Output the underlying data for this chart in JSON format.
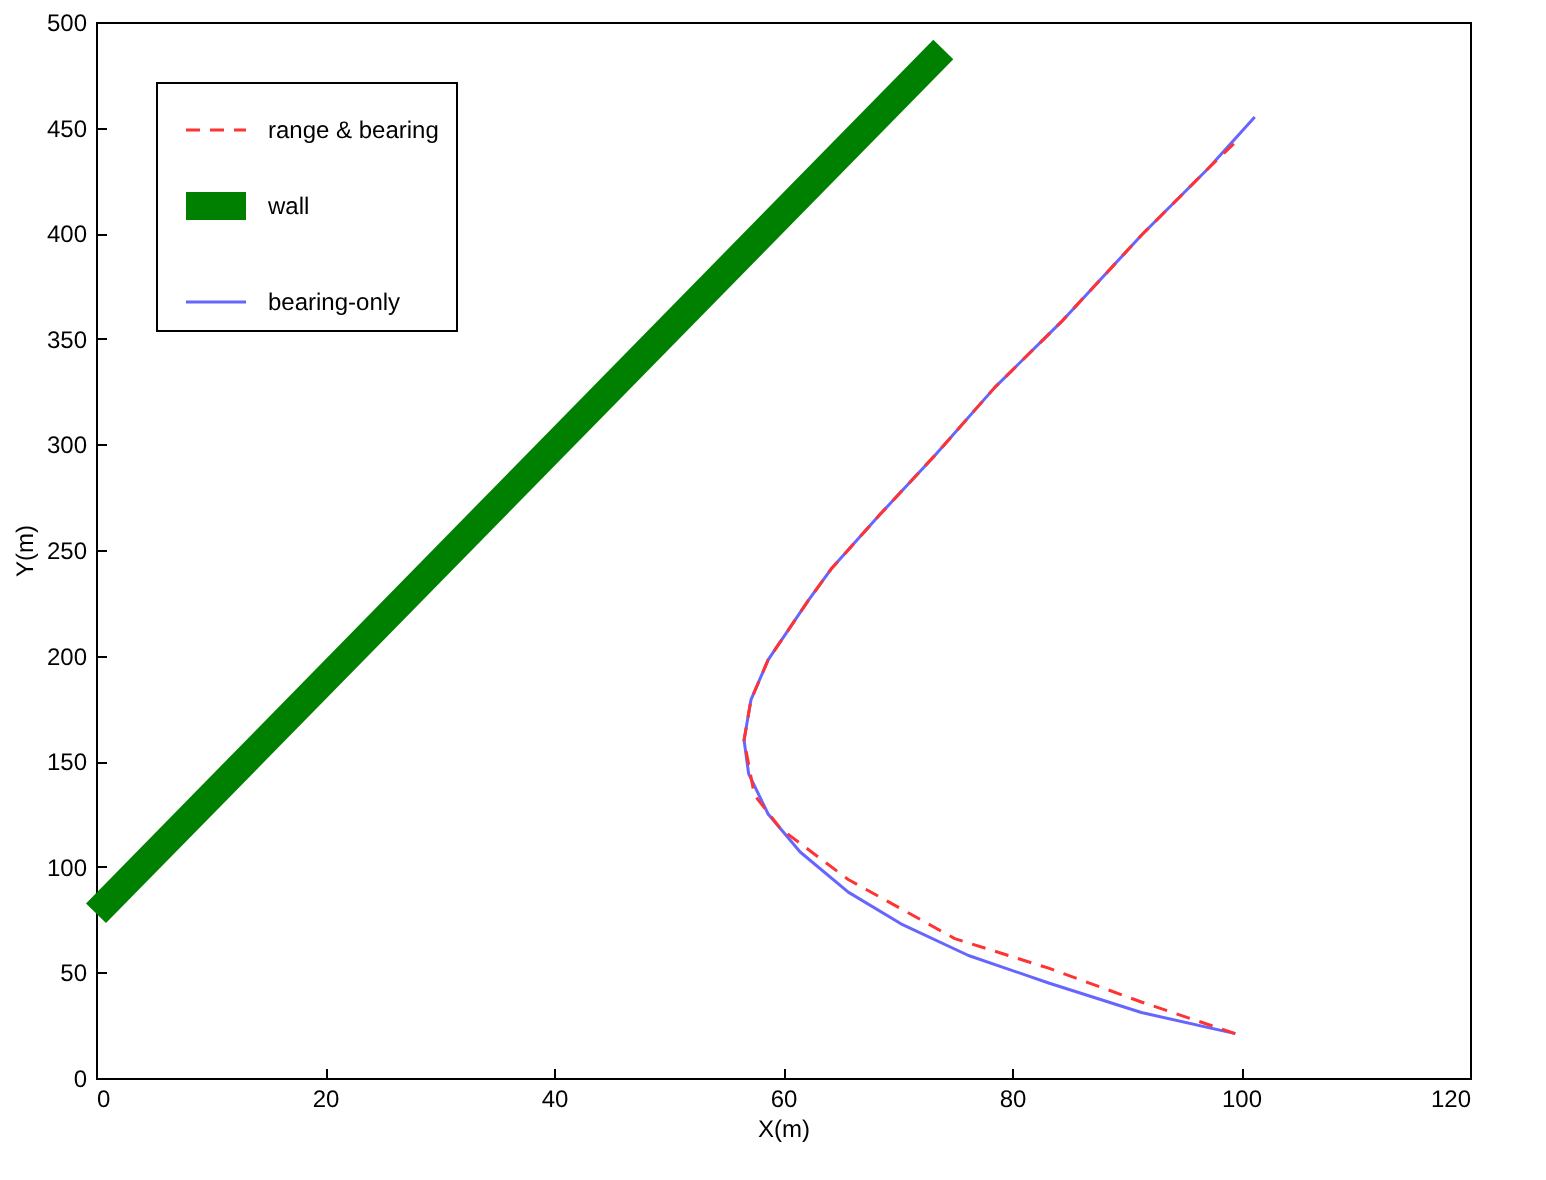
{
  "chart_data": {
    "type": "line",
    "xlabel": "X(m)",
    "ylabel": "Y(m)",
    "xlim": [
      0,
      120
    ],
    "xticks": [
      0,
      20,
      40,
      60,
      80,
      100,
      120
    ],
    "ylim": [
      0,
      500
    ],
    "yticks": [
      0,
      50,
      100,
      150,
      200,
      250,
      300,
      350,
      400,
      450,
      500
    ],
    "grid": false,
    "legend": "top left",
    "marker": "none",
    "series": [
      {
        "name": "range & bearing",
        "color": "#ff3333",
        "line_style": "dashed",
        "x": [
          99.5,
          91.3,
          83.2,
          75,
          65.7,
          59.8,
          57.5,
          56.6,
          57.2,
          58.7,
          62.2,
          64.2,
          68.5,
          73.3,
          78.5,
          84.3,
          91.3,
          97.2,
          99.5
        ],
        "values": [
          21,
          36,
          52,
          66,
          94,
          118,
          134,
          160,
          179,
          198,
          226,
          241,
          267,
          295,
          327,
          358,
          399,
          431,
          443
        ]
      },
      {
        "name": "wall",
        "color": "#008000",
        "line_style": "solid",
        "x": [
          0,
          74
        ],
        "values": [
          78,
          487
        ]
      },
      {
        "name": "bearing-only",
        "color": "#6666ff",
        "line_style": "solid",
        "x": [
          99.5,
          91.3,
          83.2,
          76.2,
          70.3,
          65.7,
          61.5,
          58.7,
          57,
          56.6,
          57.2,
          58.7,
          62.2,
          64.2,
          68.5,
          73.3,
          78.5,
          84.3,
          91.3,
          97.2,
          101.2
        ],
        "values": [
          21,
          31,
          45,
          58,
          73,
          88,
          107,
          125,
          144,
          160,
          179,
          198,
          226,
          241,
          267,
          295,
          327,
          358,
          399,
          431,
          455
        ]
      }
    ]
  }
}
